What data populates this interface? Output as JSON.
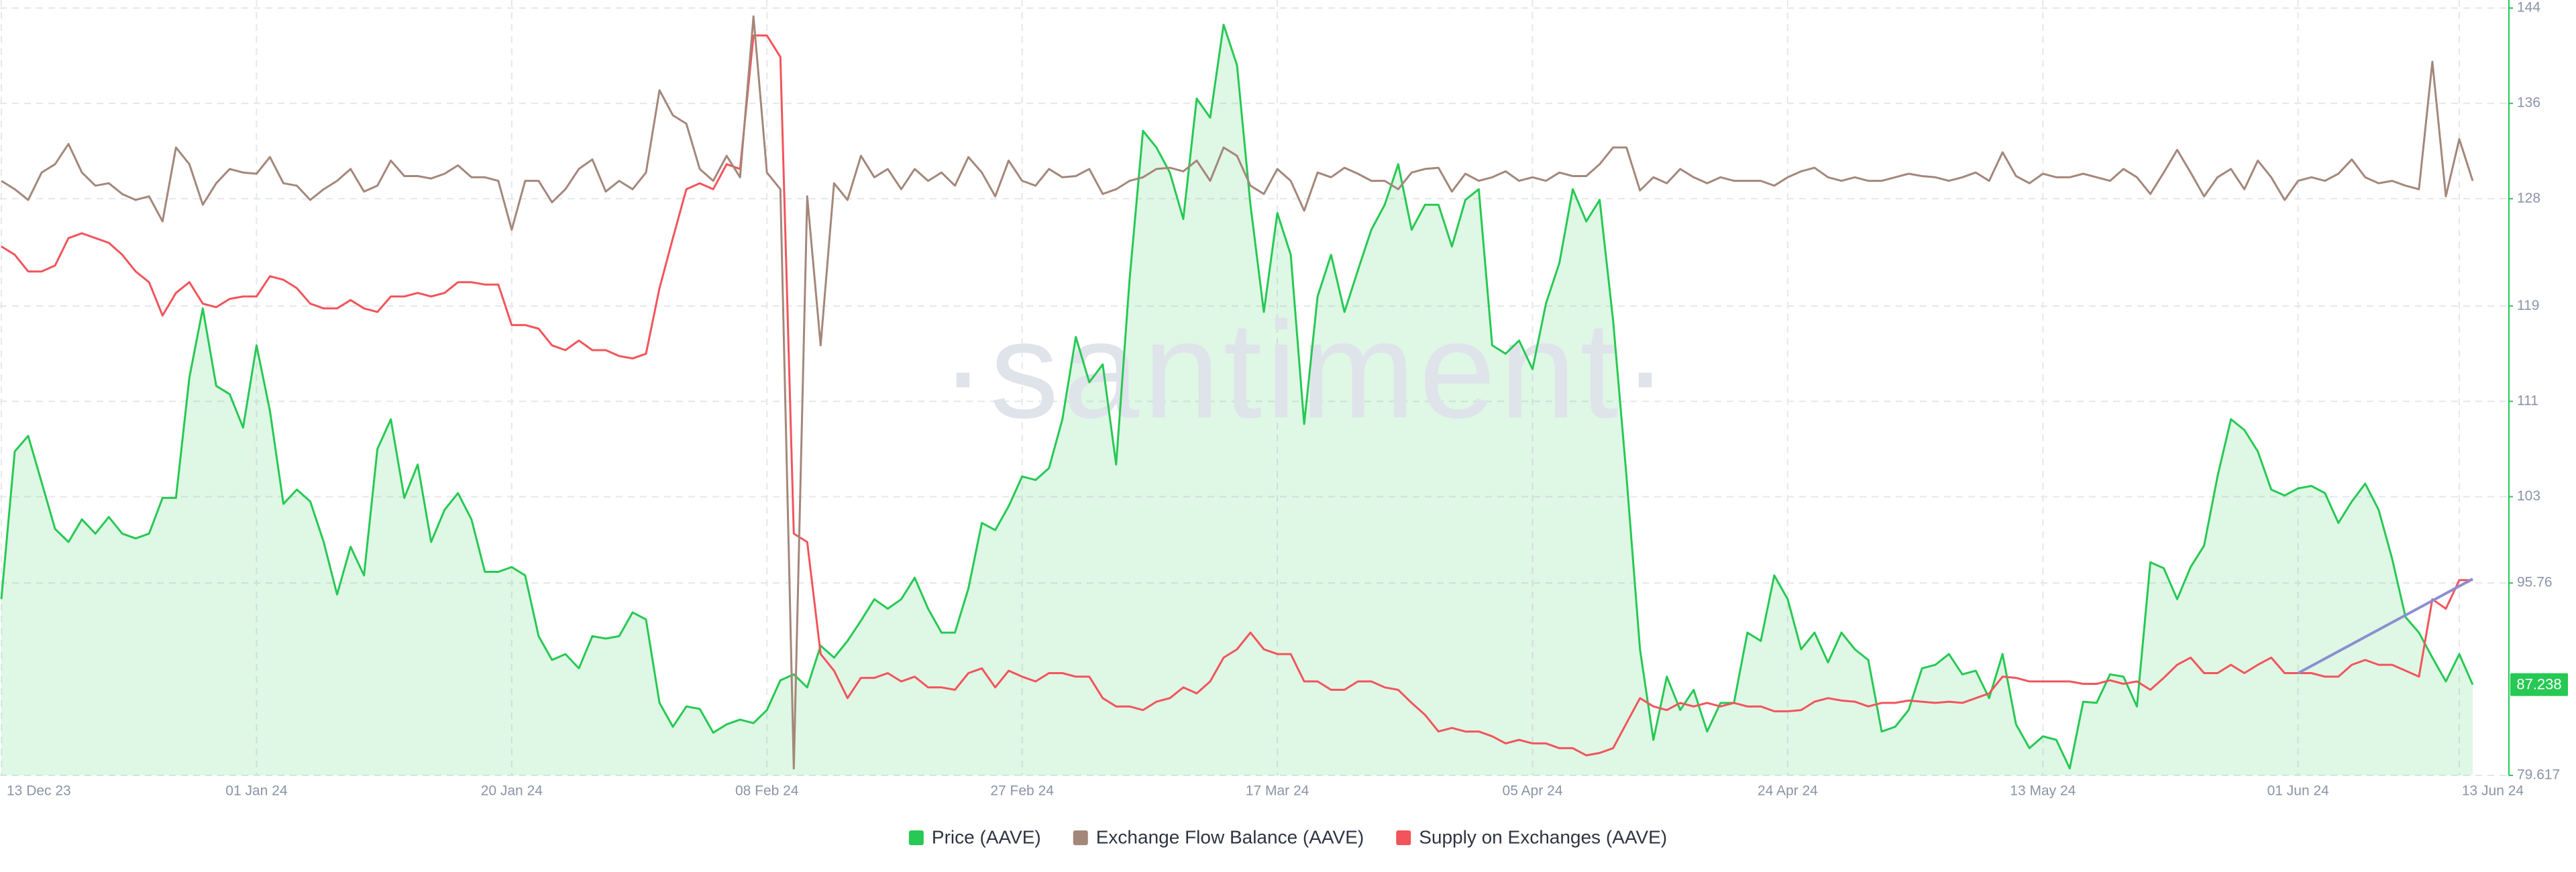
{
  "chart_data": {
    "type": "line",
    "watermark": "·santiment·",
    "x": [
      0,
      1,
      2,
      3,
      4,
      5,
      6,
      7,
      8,
      9,
      10,
      11,
      12,
      13,
      14,
      15,
      16,
      17,
      18,
      19,
      20,
      21,
      22,
      23,
      24,
      25,
      26,
      27,
      28,
      29,
      30,
      31,
      32,
      33,
      34,
      35,
      36,
      37,
      38,
      39,
      40,
      41,
      42,
      43,
      44,
      45,
      46,
      47,
      48,
      49,
      50,
      51,
      52,
      53,
      54,
      55,
      56,
      57,
      58,
      59,
      60,
      61,
      62,
      63,
      64,
      65,
      66,
      67,
      68,
      69,
      70,
      71,
      72,
      73,
      74,
      75,
      76,
      77,
      78,
      79,
      80,
      81,
      82,
      83,
      84,
      85,
      86,
      87,
      88,
      89,
      90,
      91,
      92,
      93,
      94,
      95,
      96,
      97,
      98,
      99,
      100,
      101,
      102,
      103,
      104,
      105,
      106,
      107,
      108,
      109,
      110,
      111,
      112,
      113,
      114,
      115,
      116,
      117,
      118,
      119,
      120,
      121,
      122,
      123,
      124,
      125,
      126,
      127,
      128,
      129,
      130,
      131,
      132,
      133,
      134,
      135,
      136,
      137,
      138,
      139,
      140,
      141,
      142,
      143,
      144,
      145,
      146,
      147,
      148,
      149,
      150,
      151,
      152,
      153,
      154,
      155,
      156,
      157,
      158,
      159,
      160,
      161,
      162,
      163,
      164,
      165,
      166,
      167,
      168,
      169,
      170,
      171,
      172,
      173,
      174,
      175,
      176,
      177,
      178,
      179,
      180,
      181,
      182,
      183,
      184
    ],
    "xlim": [
      0,
      184
    ],
    "xticks": [
      {
        "value": 0,
        "label": "13 Dec 23"
      },
      {
        "value": 19,
        "label": "01 Jan 24"
      },
      {
        "value": 38,
        "label": "20 Jan 24"
      },
      {
        "value": 57,
        "label": "08 Feb 24"
      },
      {
        "value": 76,
        "label": "27 Feb 24"
      },
      {
        "value": 95,
        "label": "17 Mar 24"
      },
      {
        "value": 114,
        "label": "05 Apr 24"
      },
      {
        "value": 133,
        "label": "24 Apr 24"
      },
      {
        "value": 152,
        "label": "13 May 24"
      },
      {
        "value": 171,
        "label": "01 Jun 24"
      },
      {
        "value": 183,
        "label": "13 Jun 24"
      }
    ],
    "ylim": [
      79.617,
      144
    ],
    "yticks": [
      79.617,
      95.76,
      103,
      111,
      119,
      128,
      136,
      144
    ],
    "grid": true,
    "legend_position": "bottom",
    "series": [
      {
        "name": "Price (AAVE)",
        "color": "#26c953",
        "fill": true,
        "values": [
          94.4,
          106.8,
          108.1,
          104.2,
          100.3,
          99.2,
          101.1,
          99.9,
          101.3,
          99.9,
          99.5,
          99.9,
          102.9,
          102.9,
          113,
          118.8,
          112.3,
          111.6,
          108.8,
          115.7,
          110.2,
          102.4,
          103.6,
          102.6,
          99.2,
          94.8,
          98.8,
          96.4,
          107,
          109.5,
          102.9,
          105.7,
          99.2,
          101.9,
          103.3,
          101.1,
          96.7,
          96.7,
          97.1,
          96.4,
          91.3,
          89.3,
          89.8,
          88.6,
          91.3,
          91.1,
          91.3,
          93.3,
          92.7,
          85.7,
          83.7,
          85.4,
          85.2,
          83.2,
          83.9,
          84.3,
          84,
          85.1,
          87.6,
          88.1,
          87,
          90.5,
          89.5,
          90.9,
          92.6,
          94.4,
          93.6,
          94.4,
          96.2,
          93.6,
          91.6,
          91.6,
          95.3,
          100.8,
          100.2,
          102.2,
          104.7,
          104.4,
          105.4,
          109.5,
          116.4,
          112.6,
          114.1,
          105.7,
          121.2,
          133.7,
          132.3,
          130.2,
          126.3,
          136.4,
          134.8,
          142.6,
          139.2,
          127.5,
          118.5,
          126.8,
          123.3,
          109.1,
          119.8,
          123.3,
          118.5,
          122,
          125.4,
          127.5,
          130.9,
          125.4,
          127.5,
          127.5,
          124,
          127.9,
          128.8,
          115.7,
          115,
          116.1,
          113.7,
          119.2,
          122.6,
          128.8,
          126.1,
          127.9,
          117.8,
          104.7,
          90.2,
          82.6,
          87.9,
          85.1,
          86.8,
          83.3,
          85.7,
          85.7,
          91.6,
          90.9,
          96.4,
          94.4,
          90.2,
          91.6,
          89.1,
          91.6,
          90.2,
          89.3,
          83.3,
          83.7,
          85.1,
          88.6,
          88.9,
          89.8,
          88.1,
          88.4,
          86.1,
          89.8,
          83.9,
          81.9,
          82.9,
          82.6,
          80.2,
          85.8,
          85.7,
          88.1,
          87.9,
          85.4,
          97.5,
          97,
          94.4,
          97.1,
          98.9,
          104.7,
          109.5,
          108.6,
          106.8,
          103.6,
          103.1,
          103.7,
          103.9,
          103.3,
          100.8,
          102.6,
          104.1,
          101.9,
          97.8,
          92.9,
          91.6,
          89.5,
          87.5,
          89.8,
          87.238
        ]
      },
      {
        "name": "Exchange Flow Balance (AAVE)",
        "color": "#a4877a",
        "values": [
          129.5,
          128.8,
          127.9,
          130.2,
          130.9,
          132.6,
          130.2,
          129.1,
          129.3,
          128.4,
          127.9,
          128.2,
          126.1,
          132.3,
          130.9,
          127.5,
          129.3,
          130.5,
          130.2,
          130.1,
          131.5,
          129.3,
          129.1,
          127.9,
          128.8,
          129.5,
          130.5,
          128.6,
          129.1,
          131.2,
          129.9,
          129.9,
          129.7,
          130.1,
          130.8,
          129.8,
          129.8,
          129.5,
          125.4,
          129.5,
          129.5,
          127.7,
          128.8,
          130.5,
          131.3,
          128.6,
          129.5,
          128.8,
          130.2,
          137.1,
          135,
          134.3,
          130.5,
          129.5,
          131.6,
          129.8,
          143.3,
          130.2,
          128.8,
          80.2,
          128.2,
          115.7,
          129.3,
          127.9,
          131.6,
          129.8,
          130.5,
          128.8,
          130.5,
          129.5,
          130.2,
          129.1,
          131.5,
          130.2,
          128.2,
          131.2,
          129.5,
          129.1,
          130.5,
          129.8,
          129.9,
          130.5,
          128.4,
          128.8,
          129.5,
          129.8,
          130.5,
          130.6,
          130.3,
          131.2,
          129.5,
          132.3,
          131.6,
          129.1,
          128.4,
          130.5,
          129.5,
          127,
          130.2,
          129.8,
          130.6,
          130.1,
          129.5,
          129.5,
          128.8,
          130.2,
          130.5,
          130.6,
          128.6,
          130.1,
          129.5,
          129.8,
          130.3,
          129.5,
          129.8,
          129.5,
          130.2,
          129.9,
          129.9,
          130.9,
          132.3,
          132.3,
          128.7,
          129.8,
          129.3,
          130.5,
          129.8,
          129.3,
          129.8,
          129.5,
          129.5,
          129.5,
          129.1,
          129.8,
          130.3,
          130.6,
          129.8,
          129.5,
          129.8,
          129.5,
          129.5,
          129.8,
          130.1,
          129.9,
          129.8,
          129.5,
          129.8,
          130.2,
          129.5,
          131.9,
          129.9,
          129.3,
          130.1,
          129.8,
          129.8,
          130.1,
          129.8,
          129.5,
          130.5,
          129.8,
          128.4,
          130.2,
          132.1,
          130.2,
          128.2,
          129.8,
          130.5,
          128.8,
          131.2,
          129.8,
          127.9,
          129.5,
          129.8,
          129.5,
          130.1,
          131.3,
          129.8,
          129.3,
          129.5,
          129.1,
          128.8,
          139.5,
          128.2,
          133,
          129.5
        ]
      },
      {
        "name": "Supply on Exchanges (AAVE)",
        "color": "#f2545b",
        "values": [
          124,
          123.3,
          121.9,
          121.9,
          122.4,
          124.7,
          125.1,
          124.7,
          124.3,
          123.3,
          121.9,
          121,
          118.2,
          120.1,
          121,
          119.2,
          118.9,
          119.6,
          119.8,
          119.8,
          121.5,
          121.2,
          120.5,
          119.2,
          118.8,
          118.8,
          119.5,
          118.8,
          118.5,
          119.8,
          119.8,
          120.1,
          119.8,
          120.1,
          121,
          121,
          120.8,
          120.8,
          117.4,
          117.4,
          117.1,
          115.7,
          115.3,
          116.1,
          115.3,
          115.3,
          114.8,
          114.6,
          115,
          120.5,
          124.7,
          128.8,
          129.3,
          128.8,
          130.9,
          130.5,
          141.7,
          141.7,
          139.9,
          99.9,
          99.2,
          89.8,
          88.4,
          86.1,
          87.8,
          87.8,
          88.2,
          87.5,
          87.9,
          87,
          87,
          86.8,
          88.2,
          88.6,
          87,
          88.4,
          87.9,
          87.5,
          88.2,
          88.2,
          87.9,
          87.9,
          86.1,
          85.4,
          85.4,
          85.1,
          85.8,
          86.1,
          87,
          86.5,
          87.5,
          89.5,
          90.2,
          91.6,
          90.2,
          89.8,
          89.8,
          87.5,
          87.5,
          86.8,
          86.8,
          87.5,
          87.5,
          87,
          86.8,
          85.7,
          84.7,
          83.3,
          83.6,
          83.3,
          83.3,
          82.9,
          82.3,
          82.6,
          82.3,
          82.3,
          81.9,
          81.9,
          81.3,
          81.5,
          81.9,
          84,
          86.1,
          85.4,
          85.1,
          85.7,
          85.4,
          85.7,
          85.4,
          85.7,
          85.4,
          85.4,
          85,
          85,
          85.1,
          85.8,
          86.1,
          85.9,
          85.8,
          85.4,
          85.7,
          85.7,
          85.9,
          85.8,
          85.7,
          85.8,
          85.7,
          86.1,
          86.5,
          87.9,
          87.8,
          87.5,
          87.5,
          87.5,
          87.5,
          87.3,
          87.3,
          87.6,
          87.3,
          87.5,
          86.8,
          87.8,
          88.9,
          89.5,
          88.2,
          88.2,
          88.9,
          88.2,
          88.9,
          89.5,
          88.2,
          88.2,
          88.2,
          87.9,
          87.9,
          88.9,
          89.3,
          88.9,
          88.9,
          88.4,
          87.9,
          94.4,
          93.6,
          96,
          96
        ]
      }
    ],
    "trend_line": {
      "x": [
        171,
        184
      ],
      "y": [
        88.2,
        96.1
      ],
      "color": "#8a8fd0"
    }
  }
}
